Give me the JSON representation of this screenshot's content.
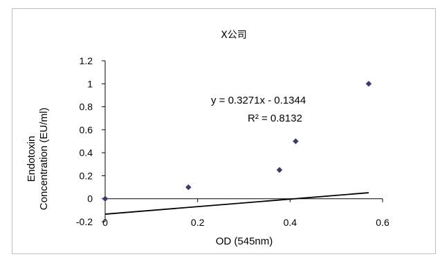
{
  "chart_data": {
    "type": "scatter",
    "title": "X公司",
    "xlabel": "OD (545nm)",
    "ylabel": [
      "Endotoxin",
      "Concentration (EU/ml)"
    ],
    "xlim": [
      0,
      0.6
    ],
    "ylim": [
      -0.2,
      1.2
    ],
    "xticks": [
      "0",
      "0.2",
      "0.4",
      "0.6"
    ],
    "yticks": [
      "-0.2",
      "0",
      "0.2",
      "0.4",
      "0.6",
      "0.8",
      "1",
      "1.2"
    ],
    "grid": false,
    "legend": "none",
    "series": [
      {
        "x": [
          0,
          0.18,
          0.377,
          0.412,
          0.57
        ],
        "y": [
          0,
          0.1,
          0.25,
          0.5,
          1.0
        ],
        "marker": "diamond",
        "color": "#3b3b6b"
      }
    ],
    "trendline": {
      "type": "linear",
      "slope": 0.3271,
      "intercept": -0.1344,
      "x_range": [
        0,
        0.57
      ],
      "color": "#000000",
      "equation_label": "y = 0.3271x - 0.1344",
      "r2_label": "R² = 0.8132"
    }
  }
}
